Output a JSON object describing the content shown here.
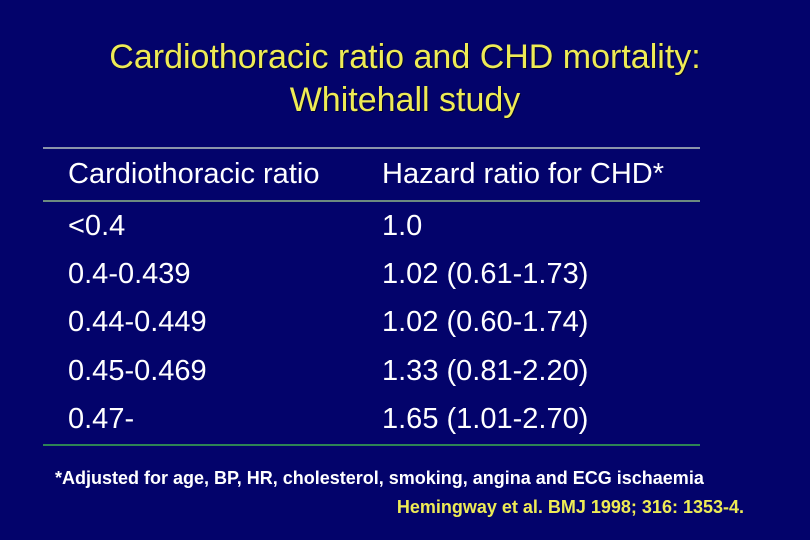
{
  "slide": {
    "title_line1": "Cardiothoracic ratio and CHD mortality:",
    "title_line2": "Whitehall study",
    "table": {
      "columns": [
        "Cardiothoracic ratio",
        "Hazard ratio for CHD*"
      ],
      "rows": [
        [
          "<0.4",
          "1.0"
        ],
        [
          "0.4-0.439",
          "1.02 (0.61-1.73)"
        ],
        [
          "0.44-0.449",
          "1.02 (0.60-1.74)"
        ],
        [
          "0.45-0.469",
          "1.33 (0.81-2.20)"
        ],
        [
          "0.47-",
          "1.65 (1.01-2.70)"
        ]
      ]
    },
    "footnote": "*Adjusted for age, BP, HR, cholesterol, smoking, angina and ECG ischaemia",
    "citation": "Hemingway et al. BMJ 1998; 316: 1353-4.",
    "colors": {
      "background": "#03036B",
      "title_text": "#EEEB55",
      "table_text": "#FFFFFF",
      "rule_top": "#8A94AA",
      "rule_below_header": "#6D8A80",
      "rule_bottom": "#2E8455",
      "citation_text": "#EEEB55"
    }
  }
}
